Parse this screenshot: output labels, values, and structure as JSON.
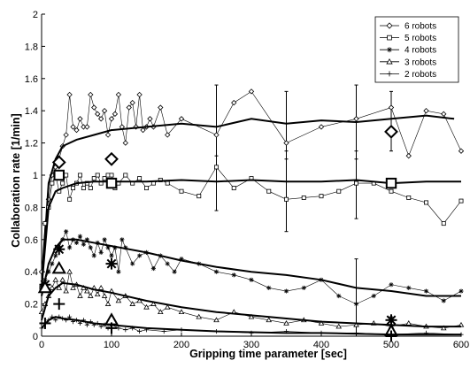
{
  "chart_data": {
    "type": "line",
    "title": "",
    "xlabel": "Gripping time parameter [sec]",
    "ylabel": "Collaboration rate [1/min]",
    "xlim": [
      0,
      600
    ],
    "ylim": [
      0,
      2
    ],
    "xticks": [
      0,
      100,
      200,
      300,
      400,
      500,
      600
    ],
    "yticks": [
      0,
      0.2,
      0.4,
      0.6,
      0.8,
      1,
      1.2,
      1.4,
      1.6,
      1.8,
      2
    ],
    "ytick_labels": [
      "0",
      "0.2",
      "0.4",
      "0.6",
      "0.8",
      "1",
      "1.2",
      "1.4",
      "1.6",
      "1.8",
      "2"
    ],
    "grid": false,
    "legend_position": "top-right",
    "series": [
      {
        "name": "6 robots",
        "marker": "diamond",
        "x": [
          0,
          5,
          10,
          15,
          20,
          25,
          30,
          35,
          40,
          45,
          50,
          55,
          60,
          65,
          70,
          75,
          80,
          85,
          90,
          95,
          100,
          105,
          110,
          115,
          120,
          125,
          130,
          135,
          140,
          145,
          150,
          155,
          160,
          170,
          180,
          200,
          250,
          275,
          300,
          350,
          400,
          450,
          500,
          525,
          550,
          575,
          600
        ],
        "y": [
          0.4,
          0.7,
          0.85,
          1.0,
          1.05,
          1.1,
          1.18,
          1.25,
          1.5,
          1.3,
          1.28,
          1.35,
          1.3,
          1.3,
          1.5,
          1.42,
          1.38,
          1.35,
          1.4,
          1.25,
          1.35,
          1.38,
          1.5,
          1.3,
          1.2,
          1.42,
          1.45,
          1.3,
          1.5,
          1.28,
          1.3,
          1.35,
          1.3,
          1.42,
          1.25,
          1.35,
          1.25,
          1.45,
          1.52,
          1.2,
          1.3,
          1.35,
          1.42,
          1.12,
          1.4,
          1.38,
          1.15
        ],
        "mean_x": [
          0,
          10,
          20,
          30,
          50,
          75,
          100,
          150,
          200,
          250,
          300,
          350,
          400,
          450,
          500,
          550,
          590
        ],
        "mean_y": [
          0.3,
          0.95,
          1.1,
          1.18,
          1.22,
          1.25,
          1.28,
          1.3,
          1.32,
          1.3,
          1.35,
          1.32,
          1.34,
          1.33,
          1.35,
          1.37,
          1.35
        ],
        "big_marker_x": [
          25,
          100,
          500
        ],
        "big_marker_y": [
          1.08,
          1.1,
          1.27
        ]
      },
      {
        "name": "5 robots",
        "marker": "square",
        "x": [
          0,
          5,
          10,
          15,
          20,
          25,
          30,
          35,
          40,
          45,
          50,
          55,
          60,
          65,
          70,
          75,
          80,
          85,
          90,
          95,
          100,
          105,
          110,
          120,
          130,
          140,
          150,
          160,
          170,
          180,
          200,
          225,
          250,
          275,
          300,
          325,
          350,
          375,
          400,
          425,
          450,
          475,
          500,
          525,
          550,
          575,
          600
        ],
        "y": [
          0.3,
          0.7,
          0.8,
          0.95,
          1.0,
          0.9,
          0.95,
          1.0,
          0.85,
          0.92,
          0.95,
          1.0,
          0.92,
          0.95,
          0.92,
          0.98,
          1.0,
          0.95,
          0.98,
          1.0,
          1.0,
          0.92,
          0.95,
          1.0,
          0.95,
          0.98,
          0.92,
          0.95,
          0.97,
          0.95,
          0.9,
          0.87,
          1.05,
          0.92,
          0.98,
          0.9,
          0.85,
          0.86,
          0.87,
          0.9,
          0.95,
          0.95,
          0.9,
          0.86,
          0.83,
          0.7,
          0.84
        ],
        "mean_x": [
          0,
          10,
          20,
          30,
          50,
          75,
          100,
          150,
          200,
          250,
          300,
          350,
          400,
          450,
          500,
          550,
          600
        ],
        "mean_y": [
          0.3,
          0.8,
          0.9,
          0.92,
          0.95,
          0.96,
          0.96,
          0.96,
          0.97,
          0.96,
          0.97,
          0.96,
          0.96,
          0.97,
          0.95,
          0.96,
          0.96
        ],
        "big_marker_x": [
          25,
          100,
          500
        ],
        "big_marker_y": [
          1.0,
          0.95,
          0.95
        ]
      },
      {
        "name": "4 robots",
        "marker": "asterisk",
        "x": [
          0,
          5,
          10,
          15,
          20,
          25,
          30,
          35,
          40,
          45,
          50,
          55,
          60,
          65,
          70,
          75,
          80,
          85,
          90,
          95,
          100,
          105,
          110,
          115,
          120,
          130,
          140,
          150,
          160,
          170,
          180,
          190,
          200,
          225,
          250,
          275,
          300,
          325,
          350,
          375,
          400,
          425,
          450,
          475,
          500,
          525,
          550,
          575,
          600
        ],
        "y": [
          0.3,
          0.35,
          0.4,
          0.45,
          0.5,
          0.55,
          0.6,
          0.65,
          0.55,
          0.6,
          0.58,
          0.62,
          0.57,
          0.6,
          0.55,
          0.5,
          0.58,
          0.52,
          0.6,
          0.55,
          0.5,
          0.55,
          0.4,
          0.6,
          0.55,
          0.45,
          0.5,
          0.52,
          0.42,
          0.5,
          0.45,
          0.4,
          0.48,
          0.45,
          0.4,
          0.38,
          0.35,
          0.3,
          0.28,
          0.3,
          0.35,
          0.25,
          0.2,
          0.25,
          0.32,
          0.3,
          0.28,
          0.22,
          0.28
        ],
        "mean_x": [
          0,
          10,
          20,
          30,
          50,
          75,
          100,
          150,
          200,
          250,
          300,
          350,
          400,
          450,
          500,
          550,
          600
        ],
        "mean_y": [
          0.25,
          0.45,
          0.55,
          0.6,
          0.6,
          0.58,
          0.56,
          0.52,
          0.47,
          0.43,
          0.4,
          0.38,
          0.35,
          0.3,
          0.28,
          0.25,
          0.25
        ],
        "big_marker_x": [
          5,
          25,
          100,
          500
        ],
        "big_marker_y": [
          0.32,
          0.54,
          0.45,
          0.1
        ]
      },
      {
        "name": "3 robots",
        "marker": "triangle",
        "x": [
          0,
          5,
          10,
          15,
          20,
          25,
          30,
          35,
          40,
          45,
          50,
          55,
          60,
          65,
          70,
          75,
          80,
          85,
          90,
          95,
          100,
          110,
          120,
          130,
          140,
          150,
          160,
          170,
          180,
          200,
          225,
          250,
          275,
          300,
          325,
          350,
          375,
          400,
          425,
          450,
          475,
          500,
          525,
          550,
          575,
          600
        ],
        "y": [
          0.15,
          0.2,
          0.25,
          0.3,
          0.35,
          0.3,
          0.35,
          0.28,
          0.4,
          0.3,
          0.32,
          0.25,
          0.3,
          0.28,
          0.25,
          0.3,
          0.26,
          0.3,
          0.25,
          0.2,
          0.28,
          0.22,
          0.25,
          0.2,
          0.22,
          0.18,
          0.2,
          0.15,
          0.18,
          0.15,
          0.12,
          0.1,
          0.15,
          0.12,
          0.1,
          0.08,
          0.1,
          0.08,
          0.06,
          0.07,
          0.08,
          0.06,
          0.08,
          0.06,
          0.05,
          0.07
        ],
        "mean_x": [
          0,
          10,
          20,
          30,
          50,
          75,
          100,
          150,
          200,
          250,
          300,
          350,
          400,
          450,
          500,
          550,
          600
        ],
        "mean_y": [
          0.1,
          0.25,
          0.3,
          0.33,
          0.32,
          0.29,
          0.27,
          0.22,
          0.18,
          0.15,
          0.13,
          0.11,
          0.09,
          0.08,
          0.07,
          0.06,
          0.06
        ],
        "big_marker_x": [
          5,
          25,
          100,
          500
        ],
        "big_marker_y": [
          0.3,
          0.42,
          0.1,
          0.03
        ]
      },
      {
        "name": "2 robots",
        "marker": "plus",
        "x": [
          0,
          5,
          10,
          15,
          20,
          25,
          30,
          35,
          40,
          45,
          50,
          55,
          60,
          65,
          70,
          75,
          80,
          85,
          90,
          95,
          100,
          110,
          120,
          130,
          140,
          150,
          175,
          200,
          250,
          300,
          350,
          400,
          450,
          500,
          550,
          600
        ],
        "y": [
          0.05,
          0.08,
          0.1,
          0.12,
          0.1,
          0.12,
          0.11,
          0.1,
          0.12,
          0.09,
          0.1,
          0.08,
          0.1,
          0.07,
          0.09,
          0.07,
          0.08,
          0.06,
          0.07,
          0.05,
          0.07,
          0.05,
          0.04,
          0.05,
          0.03,
          0.04,
          0.03,
          0.04,
          0.03,
          0.02,
          0.03,
          0.02,
          0.02,
          0.01,
          0.02,
          0.01
        ],
        "mean_x": [
          0,
          10,
          20,
          30,
          50,
          75,
          100,
          150,
          200,
          250,
          300,
          350,
          400,
          450,
          500,
          550,
          600
        ],
        "mean_y": [
          0.05,
          0.1,
          0.12,
          0.11,
          0.1,
          0.08,
          0.07,
          0.05,
          0.04,
          0.03,
          0.025,
          0.02,
          0.02,
          0.015,
          0.01,
          0.01,
          0.01
        ],
        "big_marker_x": [
          5,
          25,
          100,
          500
        ],
        "big_marker_y": [
          0.08,
          0.2,
          0.05,
          0.0
        ]
      }
    ],
    "error_bars": [
      {
        "x": 250,
        "low": 1.06,
        "high": 1.56
      },
      {
        "x": 250,
        "low": 0.78,
        "high": 1.12
      },
      {
        "x": 350,
        "low": 1.1,
        "high": 1.52
      },
      {
        "x": 350,
        "low": 0.65,
        "high": 1.15
      },
      {
        "x": 450,
        "low": 1.1,
        "high": 1.56
      },
      {
        "x": 450,
        "low": 0.73,
        "high": 1.15
      },
      {
        "x": 450,
        "low": 0.0,
        "high": 0.48
      },
      {
        "x": 500,
        "low": 1.15,
        "high": 1.52
      },
      {
        "x": 500,
        "low": 0.0,
        "high": 0.12
      }
    ]
  }
}
